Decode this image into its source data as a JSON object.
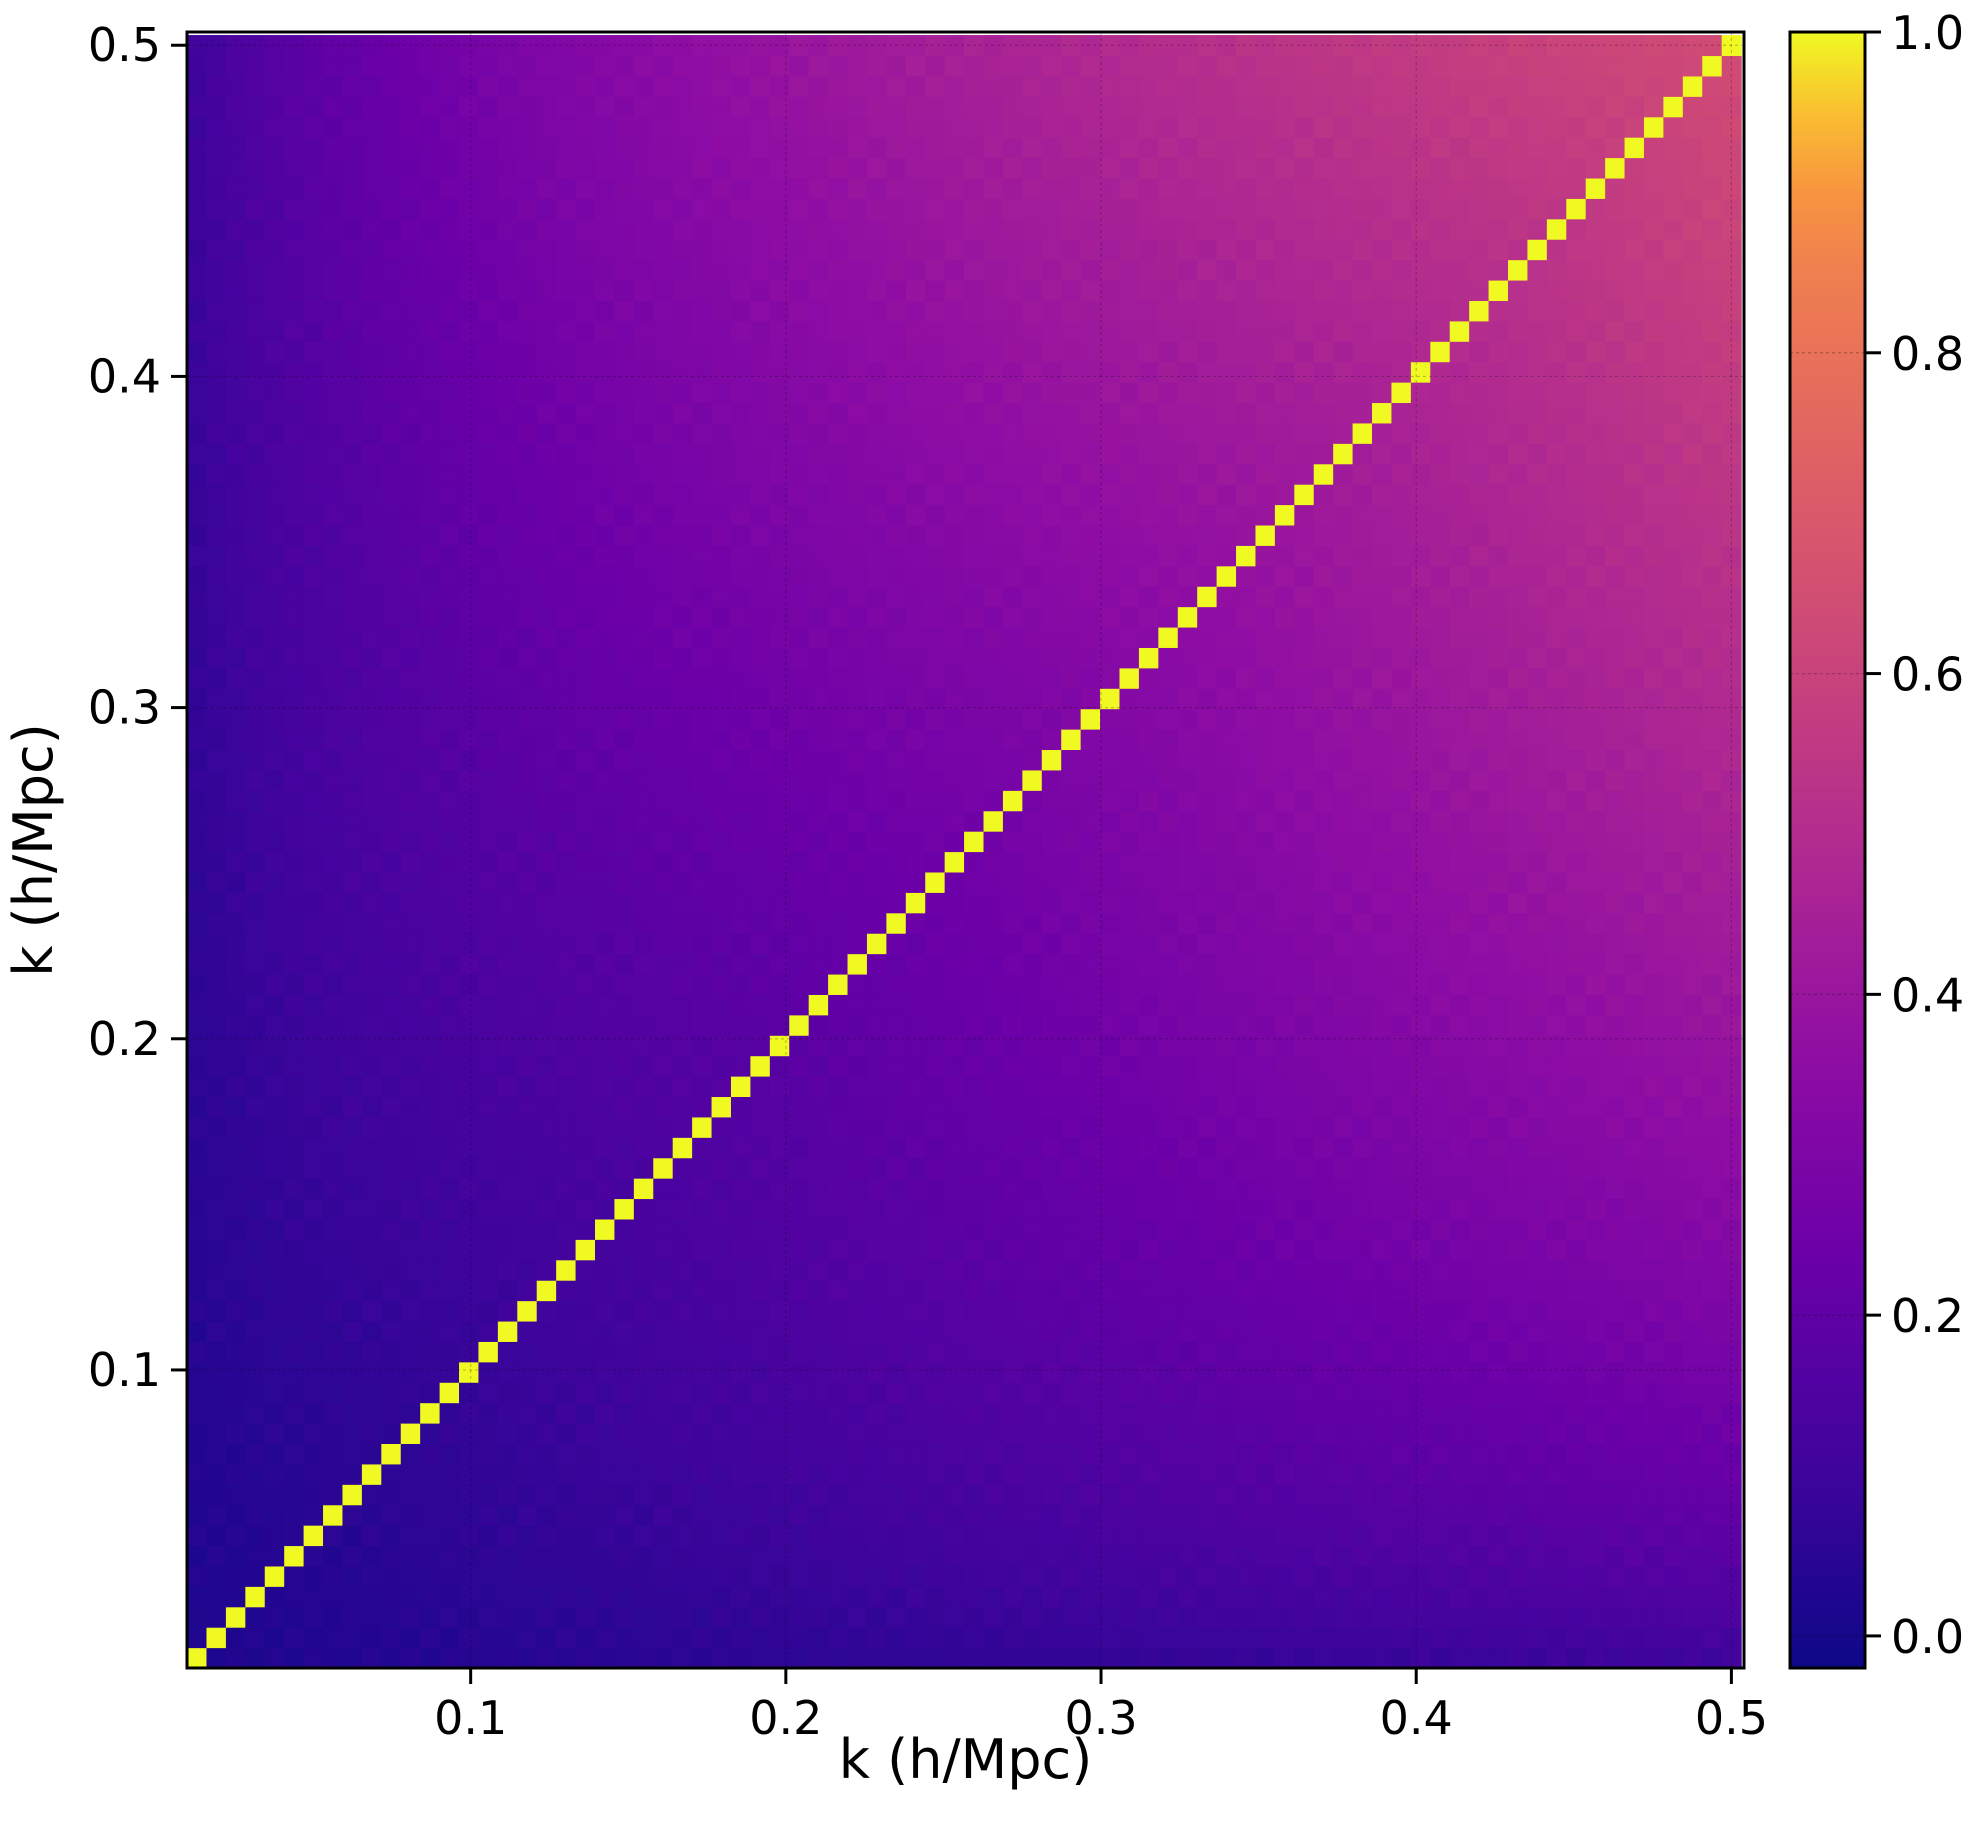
{
  "chart_data": {
    "type": "heatmap",
    "title": "",
    "xlabel": "k (h/Mpc)",
    "ylabel": "k (h/Mpc)",
    "xlim": [
      0.01,
      0.504
    ],
    "ylim": [
      0.01,
      0.504
    ],
    "x_ticks": [
      0.1,
      0.2,
      0.3,
      0.4,
      0.5
    ],
    "y_ticks": [
      0.1,
      0.2,
      0.3,
      0.4,
      0.5
    ],
    "x_tick_labels": [
      "0.1",
      "0.2",
      "0.3",
      "0.4",
      "0.5"
    ],
    "y_tick_labels": [
      "0.1",
      "0.2",
      "0.3",
      "0.4",
      "0.5"
    ],
    "grid": true,
    "colormap": "plasma",
    "colorbar": {
      "range": [
        -0.02,
        1.0
      ],
      "ticks": [
        0.0,
        0.2,
        0.4,
        0.6,
        0.8,
        1.0
      ],
      "tick_labels": [
        "0.0",
        "0.2",
        "0.4",
        "0.6",
        "0.8",
        "1.0"
      ],
      "placement": "right"
    },
    "grid_size": 80,
    "k_min": 0.0131,
    "k_max": 0.5,
    "description_values": {
      "diagonal": 1.0,
      "near_zero_corner_value": 0.02,
      "high_k_corner_value": 0.63,
      "mid_value_at_k_0_25": 0.3
    }
  }
}
